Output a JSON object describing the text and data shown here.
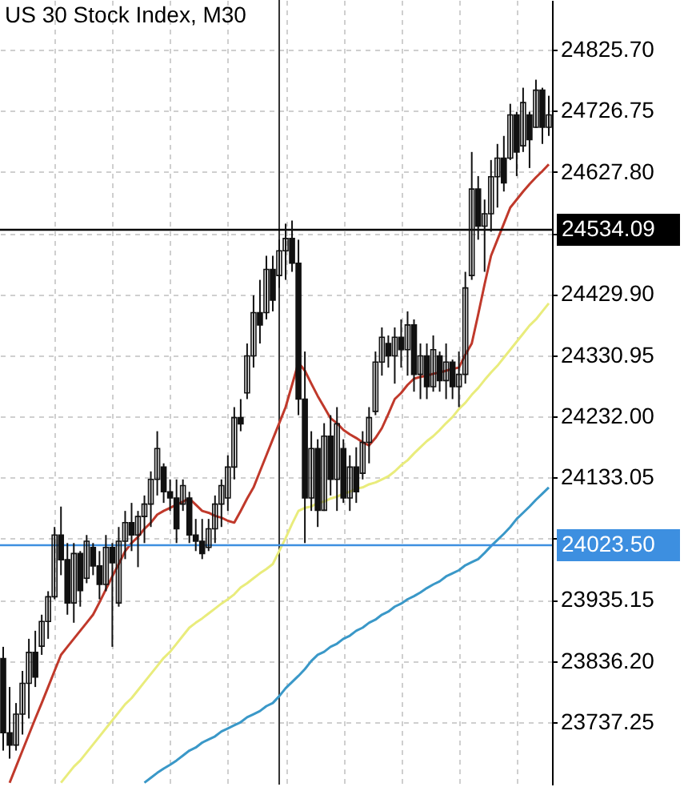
{
  "chart_data": {
    "type": "candlestick",
    "title": "US 30 Stock Index, M30",
    "categories": [
      null,
      null,
      null,
      null,
      null,
      null,
      null,
      null,
      null,
      null,
      null,
      null,
      null,
      null,
      null,
      null,
      null,
      null,
      null,
      null,
      null,
      null,
      null,
      null,
      null,
      null,
      null,
      null,
      null,
      null,
      null,
      null,
      null,
      null,
      null,
      null,
      null,
      null,
      null,
      null,
      null,
      null,
      null,
      null,
      null,
      null,
      null,
      null,
      null,
      null,
      null,
      null,
      null,
      null,
      null,
      null,
      null,
      null,
      null,
      null,
      null,
      null,
      null,
      null,
      null,
      null,
      null,
      null,
      null,
      null,
      null,
      null,
      null,
      null,
      null,
      null,
      null,
      null,
      null,
      null,
      null,
      null,
      null,
      null,
      null,
      null
    ],
    "ohlc": [
      [
        23840,
        23859,
        23691,
        23720
      ],
      [
        23720,
        23794,
        23678,
        23700
      ],
      [
        23700,
        23768,
        23691,
        23750
      ],
      [
        23750,
        23820,
        23717,
        23800
      ],
      [
        23800,
        23872,
        23743,
        23850
      ],
      [
        23850,
        23885,
        23794,
        23810
      ],
      [
        23860,
        23911,
        23846,
        23900
      ],
      [
        23900,
        23949,
        23872,
        23940
      ],
      [
        23940,
        24053,
        23936,
        24040
      ],
      [
        24040,
        24086,
        23975,
        24000
      ],
      [
        24000,
        24027,
        23911,
        23930
      ],
      [
        23930,
        24027,
        23898,
        24010
      ],
      [
        24010,
        24014,
        23924,
        23950
      ],
      [
        23970,
        24040,
        23962,
        24030
      ],
      [
        24020,
        24027,
        23975,
        23990
      ],
      [
        23990,
        24014,
        23936,
        23960
      ],
      [
        23960,
        24040,
        23949,
        24020
      ],
      [
        24020,
        24027,
        23859,
        23995
      ],
      [
        23930,
        24053,
        23924,
        24030
      ],
      [
        24030,
        24079,
        24001,
        24060
      ],
      [
        24060,
        24092,
        24014,
        24040
      ],
      [
        24040,
        24079,
        23988,
        24070
      ],
      [
        24070,
        24104,
        24027,
        24090
      ],
      [
        24090,
        24143,
        24053,
        24130
      ],
      [
        24130,
        24208,
        24104,
        24180
      ],
      [
        24150,
        24156,
        24092,
        24110
      ],
      [
        24110,
        24130,
        24079,
        24100
      ],
      [
        24100,
        24130,
        24027,
        24050
      ],
      [
        24090,
        24130,
        24079,
        24120
      ],
      [
        24100,
        24110,
        24027,
        24040
      ],
      [
        24040,
        24066,
        24014,
        24030
      ],
      [
        24030,
        24066,
        24001,
        24010
      ],
      [
        24020,
        24066,
        24014,
        24050
      ],
      [
        24050,
        24104,
        24027,
        24090
      ],
      [
        24090,
        24130,
        24053,
        24120
      ],
      [
        24100,
        24169,
        24079,
        24150
      ],
      [
        24150,
        24247,
        24130,
        24230
      ],
      [
        24230,
        24260,
        24208,
        24220
      ],
      [
        24270,
        24350,
        24260,
        24330
      ],
      [
        24330,
        24428,
        24311,
        24400
      ],
      [
        24400,
        24453,
        24350,
        24380
      ],
      [
        24400,
        24492,
        24389,
        24470
      ],
      [
        24470,
        24492,
        24402,
        24420
      ],
      [
        24460,
        24518,
        24440,
        24500
      ],
      [
        24500,
        24544,
        24453,
        24520
      ],
      [
        24520,
        24549,
        24466,
        24480
      ],
      [
        24480,
        24518,
        24234,
        24260
      ],
      [
        24260,
        24337,
        24027,
        24100
      ],
      [
        24100,
        24208,
        24079,
        24180
      ],
      [
        24180,
        24195,
        24053,
        24080
      ],
      [
        24080,
        24221,
        24079,
        24200
      ],
      [
        24200,
        24234,
        24104,
        24130
      ],
      [
        24130,
        24247,
        24079,
        24220
      ],
      [
        24180,
        24195,
        24092,
        24100
      ],
      [
        24100,
        24169,
        24079,
        24150
      ],
      [
        24150,
        24182,
        24092,
        24110
      ],
      [
        24140,
        24208,
        24130,
        24190
      ],
      [
        24190,
        24247,
        24156,
        24230
      ],
      [
        24240,
        24337,
        24234,
        24320
      ],
      [
        24320,
        24376,
        24298,
        24360
      ],
      [
        24350,
        24363,
        24311,
        24330
      ],
      [
        24330,
        24376,
        24285,
        24360
      ],
      [
        24360,
        24389,
        24311,
        24340
      ],
      [
        24340,
        24402,
        24298,
        24380
      ],
      [
        24380,
        24389,
        24272,
        24300
      ],
      [
        24300,
        24350,
        24260,
        24330
      ],
      [
        24330,
        24350,
        24260,
        24280
      ],
      [
        24280,
        24363,
        24272,
        24340
      ],
      [
        24330,
        24337,
        24272,
        24290
      ],
      [
        24290,
        24350,
        24260,
        24320
      ],
      [
        24320,
        24324,
        24260,
        24280
      ],
      [
        24280,
        24337,
        24247,
        24300
      ],
      [
        24300,
        24466,
        24285,
        24440
      ],
      [
        24460,
        24660,
        24453,
        24600
      ],
      [
        24600,
        24621,
        24518,
        24540
      ],
      [
        24540,
        24583,
        24466,
        24560
      ],
      [
        24560,
        24647,
        24531,
        24620
      ],
      [
        24620,
        24673,
        24570,
        24650
      ],
      [
        24650,
        24686,
        24596,
        24610
      ],
      [
        24650,
        24738,
        24647,
        24720
      ],
      [
        24720,
        24725,
        24621,
        24660
      ],
      [
        24670,
        24764,
        24660,
        24740
      ],
      [
        24720,
        24725,
        24634,
        24680
      ],
      [
        24700,
        24777,
        24699,
        24760
      ],
      [
        24760,
        24764,
        24673,
        24700
      ],
      [
        24700,
        24751,
        24686,
        24720
      ]
    ],
    "series": [
      {
        "type": "line",
        "color": "#c0392b",
        "values": [
          null,
          23639,
          23665,
          23691,
          23717,
          23743,
          23768,
          23794,
          23820,
          23846,
          23859,
          23872,
          23885,
          23898,
          23911,
          23931,
          23952,
          23973,
          23993,
          24014,
          24027,
          24037,
          24050,
          24060,
          24073,
          24079,
          24084,
          24089,
          24094,
          24099,
          24089,
          24079,
          24076,
          24071,
          24068,
          24063,
          24060,
          24079,
          24099,
          24117,
          24143,
          24169,
          24195,
          24221,
          24247,
          24283,
          24319,
          24306,
          24285,
          24265,
          24247,
          24229,
          24221,
          24210,
          24203,
          24197,
          24190,
          24185,
          24197,
          24213,
          24236,
          24260,
          24270,
          24283,
          24293,
          24296,
          24298,
          24301,
          24303,
          24306,
          24309,
          24311,
          24332,
          24350,
          24397,
          24446,
          24492,
          24518,
          24544,
          24570,
          24583,
          24596,
          24608,
          24619,
          24629,
          24640
        ]
      },
      {
        "type": "line",
        "color": "#e9ec7c",
        "values": [
          null,
          null,
          null,
          null,
          null,
          null,
          null,
          null,
          null,
          23639,
          23652,
          23665,
          23675,
          23688,
          23701,
          23714,
          23727,
          23740,
          23753,
          23766,
          23776,
          23789,
          23802,
          23815,
          23828,
          23841,
          23851,
          23864,
          23877,
          23890,
          23898,
          23905,
          23913,
          23921,
          23929,
          23936,
          23944,
          23955,
          23962,
          23970,
          23978,
          23985,
          23993,
          24014,
          24035,
          24058,
          24079,
          24084,
          24086,
          24092,
          24094,
          24099,
          24102,
          24107,
          24110,
          24115,
          24117,
          24122,
          24125,
          24130,
          24135,
          24143,
          24153,
          24161,
          24172,
          24182,
          24192,
          24200,
          24210,
          24221,
          24231,
          24244,
          24254,
          24267,
          24278,
          24291,
          24303,
          24314,
          24327,
          24340,
          24353,
          24366,
          24379,
          24389,
          24402,
          24415
        ]
      },
      {
        "type": "line",
        "color": "#3a98c8",
        "values": [
          null,
          null,
          null,
          null,
          null,
          null,
          null,
          null,
          null,
          null,
          null,
          null,
          null,
          null,
          null,
          null,
          null,
          null,
          null,
          null,
          null,
          null,
          23639,
          23647,
          23655,
          23662,
          23668,
          23675,
          23683,
          23691,
          23696,
          23704,
          23709,
          23714,
          23722,
          23727,
          23732,
          23737,
          23745,
          23750,
          23755,
          23763,
          23768,
          23779,
          23792,
          23802,
          23812,
          23823,
          23836,
          23846,
          23851,
          23859,
          23864,
          23872,
          23877,
          23885,
          23890,
          23898,
          23903,
          23911,
          23916,
          23924,
          23929,
          23936,
          23941,
          23947,
          23954,
          23960,
          23965,
          23973,
          23978,
          23983,
          23991,
          23996,
          24001,
          24011,
          24022,
          24032,
          24042,
          24053,
          24066,
          24076,
          24086,
          24097,
          24107,
          24117
        ]
      }
    ],
    "ylim": [
      23636,
      24906
    ],
    "yticks": [
      {
        "value": 24825.7,
        "label": "24825.70"
      },
      24726.75,
      {
        "value": 24627.8,
        "label": "24627.80"
      },
      {
        "value": 24528.85,
        "label": null
      },
      {
        "value": 24429.9,
        "label": "24429.90"
      },
      24330.95,
      {
        "value": 24232,
        "label": "24232.00"
      },
      24133.05,
      {
        "value": 24034.1,
        "label": null
      },
      23935.15,
      {
        "value": 23836.2,
        "label": "23836.20"
      },
      23737.25
    ],
    "ref_lines": [
      {
        "axis": "y",
        "value": 24534.09,
        "label": "24534.09",
        "color": "#000000"
      },
      {
        "axis": "y",
        "value": 24023.5,
        "label": "24023.50",
        "color": "#3d8fe0"
      }
    ],
    "grid": true
  }
}
